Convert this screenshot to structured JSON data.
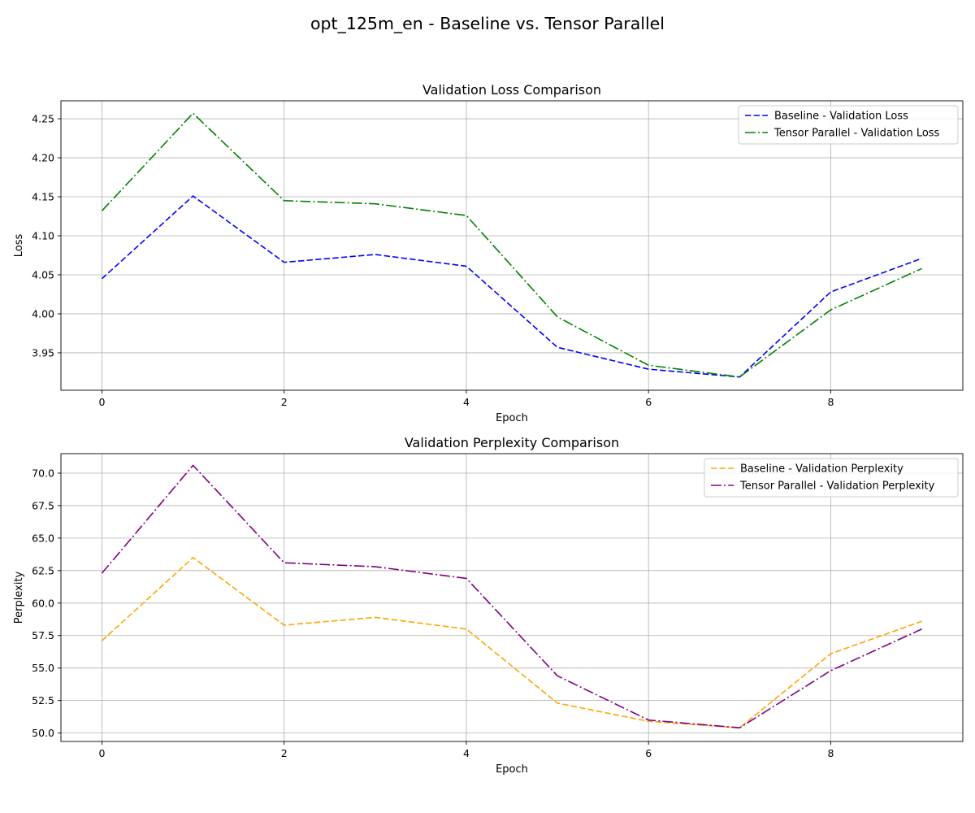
{
  "figure": {
    "suptitle": "opt_125m_en - Baseline vs. Tensor Parallel"
  },
  "chart_data": [
    {
      "type": "line",
      "title": "Validation Loss Comparison",
      "xlabel": "Epoch",
      "ylabel": "Loss",
      "x": [
        0,
        1,
        2,
        3,
        4,
        5,
        6,
        7,
        8,
        9
      ],
      "xlim": [
        -0.45,
        9.45
      ],
      "ylim": [
        3.902,
        4.273
      ],
      "xticks": [
        0,
        2,
        4,
        6,
        8
      ],
      "yticks": [
        3.95,
        4.0,
        4.05,
        4.1,
        4.15,
        4.2,
        4.25
      ],
      "ytick_format": "2",
      "grid": true,
      "legend_position": "top-right",
      "series": [
        {
          "name": "Baseline - Validation Loss",
          "color": "#0000ff",
          "style": "dashed",
          "values": [
            4.045,
            4.151,
            4.066,
            4.076,
            4.061,
            3.957,
            3.929,
            3.919,
            4.028,
            4.071
          ]
        },
        {
          "name": "Tensor Parallel - Validation Loss",
          "color": "#008000",
          "style": "dashdot",
          "values": [
            4.132,
            4.257,
            4.145,
            4.141,
            4.126,
            3.996,
            3.934,
            3.919,
            4.005,
            4.058
          ]
        }
      ]
    },
    {
      "type": "line",
      "title": "Validation Perplexity Comparison",
      "xlabel": "Epoch",
      "ylabel": "Perplexity",
      "x": [
        0,
        1,
        2,
        3,
        4,
        5,
        6,
        7,
        8,
        9
      ],
      "xlim": [
        -0.45,
        9.45
      ],
      "ylim": [
        49.35,
        71.5
      ],
      "xticks": [
        0,
        2,
        4,
        6,
        8
      ],
      "yticks": [
        50.0,
        52.5,
        55.0,
        57.5,
        60.0,
        62.5,
        65.0,
        67.5,
        70.0
      ],
      "ytick_format": "1",
      "grid": true,
      "legend_position": "top-right",
      "series": [
        {
          "name": "Baseline - Validation Perplexity",
          "color": "#ffa500",
          "style": "dashed",
          "values": [
            57.1,
            63.5,
            58.3,
            58.9,
            58.0,
            52.3,
            50.9,
            50.4,
            56.1,
            58.6
          ]
        },
        {
          "name": "Tensor Parallel - Validation Perplexity",
          "color": "#800080",
          "style": "dashdot",
          "values": [
            62.3,
            70.6,
            63.1,
            62.8,
            61.9,
            54.4,
            51.0,
            50.4,
            54.8,
            58.0
          ]
        }
      ]
    }
  ]
}
